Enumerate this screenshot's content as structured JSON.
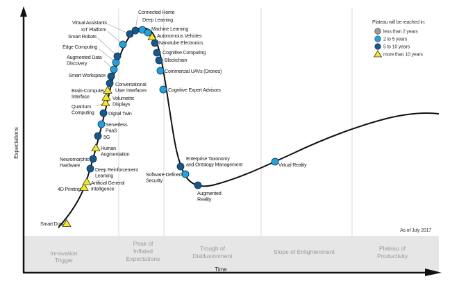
{
  "chart_data": {
    "type": "scatter",
    "xlabel": "Time",
    "ylabel": "Expectations",
    "note": "As of July 2017",
    "phases": [
      [
        "Innovation",
        "Trigger"
      ],
      [
        "Peak of",
        "Inflated",
        "Expectations"
      ],
      [
        "Trough of",
        "Disillusionment"
      ],
      [
        "Slope of Enlightenment"
      ],
      [
        "Plateau of",
        "Productivity"
      ]
    ],
    "legend": {
      "title": "Plateau will be reached in:",
      "placement": "top-right",
      "items": [
        {
          "key": "lt2",
          "label": "less than 2 years",
          "color": "#9b9b9b",
          "shape": "circle"
        },
        {
          "key": "2to5",
          "label": "2 to 5 years",
          "color": "#1fa3e0",
          "shape": "circle"
        },
        {
          "key": "5to10",
          "label": "5 to 10 years",
          "color": "#17588a",
          "shape": "circle"
        },
        {
          "key": "gt10",
          "label": "more than 10 years",
          "color": "#f4e81c",
          "shape": "triangle"
        }
      ]
    },
    "technologies": [
      {
        "name": [
          "Smart Dust"
        ],
        "phase": "Innovation Trigger",
        "plateau": "gt10"
      },
      {
        "name": [
          "4D Printing"
        ],
        "phase": "Innovation Trigger",
        "plateau": "gt10"
      },
      {
        "name": [
          "Artificial General",
          "Intelligence"
        ],
        "phase": "Innovation Trigger",
        "plateau": "gt10"
      },
      {
        "name": [
          "Deep Reinforcement",
          "Learning"
        ],
        "phase": "Innovation Trigger",
        "plateau": "5to10"
      },
      {
        "name": [
          "Neuromorphic",
          "Hardware"
        ],
        "phase": "Innovation Trigger",
        "plateau": "5to10"
      },
      {
        "name": [
          "Human",
          "Augmentation"
        ],
        "phase": "Innovation Trigger",
        "plateau": "gt10"
      },
      {
        "name": [
          "5G"
        ],
        "phase": "Innovation Trigger",
        "plateau": "5to10"
      },
      {
        "name": [
          "Serverless",
          "PaaS"
        ],
        "phase": "Innovation Trigger",
        "plateau": "2to5"
      },
      {
        "name": [
          "Digital Twin"
        ],
        "phase": "Innovation Trigger",
        "plateau": "5to10"
      },
      {
        "name": [
          "Quantum",
          "Computing"
        ],
        "phase": "Innovation Trigger",
        "plateau": "gt10"
      },
      {
        "name": [
          "Volumetric",
          "Displays"
        ],
        "phase": "Innovation Trigger",
        "plateau": "gt10"
      },
      {
        "name": [
          "Brain-Computer",
          "Interface"
        ],
        "phase": "Innovation Trigger",
        "plateau": "gt10"
      },
      {
        "name": [
          "Conversational",
          "User Interfaces"
        ],
        "phase": "Innovation Trigger",
        "plateau": "5to10"
      },
      {
        "name": [
          "Smart Workspace"
        ],
        "phase": "Innovation Trigger",
        "plateau": "5to10"
      },
      {
        "name": [
          "Augmented Data",
          "Discovery"
        ],
        "phase": "Innovation Trigger",
        "plateau": "2to5"
      },
      {
        "name": [
          "Edge Computing"
        ],
        "phase": "Innovation Trigger",
        "plateau": "2to5"
      },
      {
        "name": [
          "Smart Robots"
        ],
        "phase": "Innovation Trigger",
        "plateau": "5to10"
      },
      {
        "name": [
          "IoT Platform"
        ],
        "phase": "Peak of Inflated Expectations",
        "plateau": "2to5"
      },
      {
        "name": [
          "Virtual Assistants"
        ],
        "phase": "Peak of Inflated Expectations",
        "plateau": "5to10"
      },
      {
        "name": [
          "Connected Home"
        ],
        "phase": "Peak of Inflated Expectations",
        "plateau": "5to10"
      },
      {
        "name": [
          "Deep Learning"
        ],
        "phase": "Peak of Inflated Expectations",
        "plateau": "2to5"
      },
      {
        "name": [
          "Machine Learning"
        ],
        "phase": "Peak of Inflated Expectations",
        "plateau": "2to5"
      },
      {
        "name": [
          "Autonomous Vehicles"
        ],
        "phase": "Peak of Inflated Expectations",
        "plateau": "gt10"
      },
      {
        "name": [
          "Nanotube Electronics"
        ],
        "phase": "Peak of Inflated Expectations",
        "plateau": "5to10"
      },
      {
        "name": [
          "Cognitive Computing"
        ],
        "phase": "Peak of Inflated Expectations",
        "plateau": "5to10"
      },
      {
        "name": [
          "Blockchain"
        ],
        "phase": "Peak of Inflated Expectations",
        "plateau": "5to10"
      },
      {
        "name": [
          "Commercial UAVs (Drones)"
        ],
        "phase": "Peak of Inflated Expectations",
        "plateau": "2to5"
      },
      {
        "name": [
          "Cognitive Expert Advisors"
        ],
        "phase": "Peak of Inflated Expectations",
        "plateau": "2to5"
      },
      {
        "name": [
          "Enterprise Taxonomy",
          "and Ontology Management"
        ],
        "phase": "Trough of Disillusionment",
        "plateau": "5to10"
      },
      {
        "name": [
          "Software-Defined",
          "Security"
        ],
        "phase": "Trough of Disillusionment",
        "plateau": "2to5"
      },
      {
        "name": [
          "Augmented",
          "Reality"
        ],
        "phase": "Trough of Disillusionment",
        "plateau": "5to10"
      },
      {
        "name": [
          "Virtual Reality"
        ],
        "phase": "Slope of Enlightenment",
        "plateau": "2to5"
      }
    ]
  }
}
